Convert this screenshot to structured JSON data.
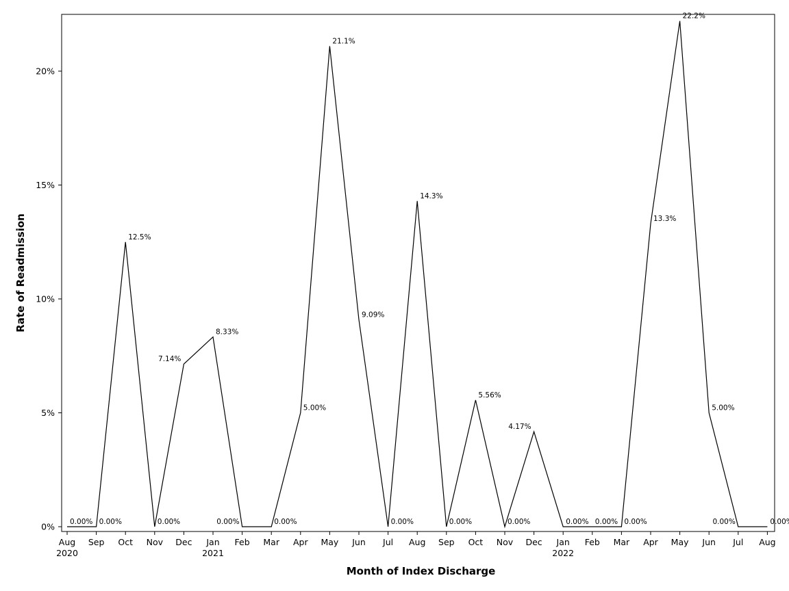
{
  "chart_data": {
    "type": "line",
    "title": "",
    "xlabel": "Month of Index Discharge",
    "ylabel": "Rate of Readmission",
    "ylim": [
      -0.2,
      22.4
    ],
    "y_ticks": [
      0,
      5,
      10,
      15,
      20
    ],
    "y_tick_labels": [
      "0%",
      "5%",
      "10%",
      "15%",
      "20%"
    ],
    "grid": false,
    "legend": "none",
    "line_color": "#000000",
    "x": [
      "Aug 2020",
      "Sep 2020",
      "Oct 2020",
      "Nov 2020",
      "Dec 2020",
      "Jan 2021",
      "Feb 2021",
      "Mar 2021",
      "Apr 2021",
      "May 2021",
      "Jun 2021",
      "Jul 2021",
      "Aug 2021",
      "Sep 2021",
      "Oct 2021",
      "Nov 2021",
      "Dec 2021",
      "Jan 2022",
      "Feb 2022",
      "Mar 2022",
      "Apr 2022",
      "May 2022",
      "Jun 2022",
      "Jul 2022",
      "Aug 2022"
    ],
    "x_tick_labels": [
      {
        "month": "Aug",
        "year": "2020"
      },
      {
        "month": "Sep",
        "year": ""
      },
      {
        "month": "Oct",
        "year": ""
      },
      {
        "month": "Nov",
        "year": ""
      },
      {
        "month": "Dec",
        "year": ""
      },
      {
        "month": "Jan",
        "year": "2021"
      },
      {
        "month": "Feb",
        "year": ""
      },
      {
        "month": "Mar",
        "year": ""
      },
      {
        "month": "Apr",
        "year": ""
      },
      {
        "month": "May",
        "year": ""
      },
      {
        "month": "Jun",
        "year": ""
      },
      {
        "month": "Jul",
        "year": ""
      },
      {
        "month": "Aug",
        "year": ""
      },
      {
        "month": "Sep",
        "year": ""
      },
      {
        "month": "Oct",
        "year": ""
      },
      {
        "month": "Nov",
        "year": ""
      },
      {
        "month": "Dec",
        "year": ""
      },
      {
        "month": "Jan",
        "year": "2022"
      },
      {
        "month": "Feb",
        "year": ""
      },
      {
        "month": "Mar",
        "year": ""
      },
      {
        "month": "Apr",
        "year": ""
      },
      {
        "month": "May",
        "year": ""
      },
      {
        "month": "Jun",
        "year": ""
      },
      {
        "month": "Jul",
        "year": ""
      },
      {
        "month": "Aug",
        "year": ""
      }
    ],
    "series": [
      {
        "values": [
          0,
          0,
          12.5,
          0,
          7.14,
          8.33,
          0,
          0,
          5.0,
          21.1,
          9.09,
          0,
          14.3,
          0,
          5.56,
          0,
          4.17,
          0,
          0,
          0,
          13.3,
          22.2,
          5.0,
          0,
          0
        ],
        "labels": [
          "0.00%",
          "0.00%",
          "12.5%",
          "0.00%",
          "7.14%",
          "8.33%",
          "0.00%",
          "0.00%",
          "5.00%",
          "21.1%",
          "9.09%",
          "0.00%",
          "14.3%",
          "0.00%",
          "5.56%",
          "0.00%",
          "4.17%",
          "0.00%",
          "0.00%",
          "0.00%",
          "13.3%",
          "22.2%",
          "5.00%",
          "0.00%",
          "0.00%"
        ],
        "label_side": [
          "right",
          "right",
          "right",
          "right",
          "left",
          "right",
          "left",
          "right",
          "right",
          "right",
          "right",
          "right",
          "right",
          "right",
          "right",
          "right",
          "left",
          "right",
          "right",
          "right",
          "right",
          "right",
          "right",
          "left",
          "right"
        ]
      }
    ]
  }
}
